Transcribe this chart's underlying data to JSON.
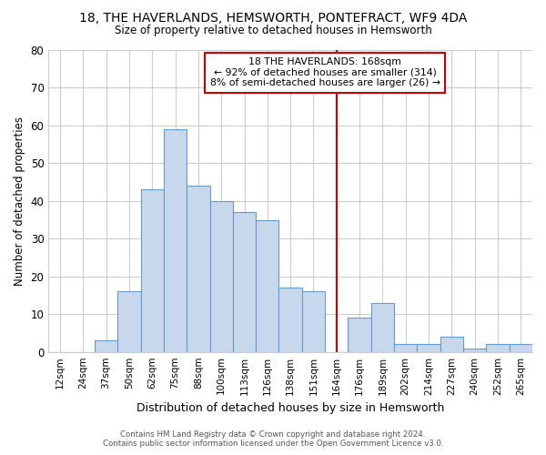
{
  "title": "18, THE HAVERLANDS, HEMSWORTH, PONTEFRACT, WF9 4DA",
  "subtitle": "Size of property relative to detached houses in Hemsworth",
  "xlabel": "Distribution of detached houses by size in Hemsworth",
  "ylabel": "Number of detached properties",
  "bar_labels": [
    "12sqm",
    "24sqm",
    "37sqm",
    "50sqm",
    "62sqm",
    "75sqm",
    "88sqm",
    "100sqm",
    "113sqm",
    "126sqm",
    "138sqm",
    "151sqm",
    "164sqm",
    "176sqm",
    "189sqm",
    "202sqm",
    "214sqm",
    "227sqm",
    "240sqm",
    "252sqm",
    "265sqm"
  ],
  "bar_values": [
    0,
    0,
    3,
    16,
    43,
    59,
    44,
    40,
    37,
    35,
    17,
    16,
    0,
    9,
    13,
    2,
    2,
    4,
    1,
    2,
    2
  ],
  "bar_color": "#c8d8ec",
  "bar_edge_color": "#6699cc",
  "vline_x": 12,
  "vline_color": "#cc0000",
  "annotation_line1": "18 THE HAVERLANDS: 168sqm",
  "annotation_line2": "← 92% of detached houses are smaller (314)",
  "annotation_line3": "8% of semi-detached houses are larger (26) →",
  "annotation_box_color": "#ffffff",
  "annotation_box_edge": "#cc0000",
  "ylim": [
    0,
    80
  ],
  "yticks": [
    0,
    10,
    20,
    30,
    40,
    50,
    60,
    70,
    80
  ],
  "footer_line1": "Contains HM Land Registry data © Crown copyright and database right 2024.",
  "footer_line2": "Contains public sector information licensed under the Open Government Licence v3.0.",
  "bg_color": "#ffffff",
  "grid_color": "#cccccc"
}
